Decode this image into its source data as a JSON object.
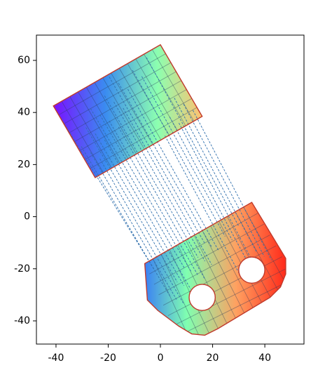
{
  "chart_data": {
    "type": "mesh-map",
    "xlim": [
      -47.5,
      55
    ],
    "ylim": [
      -48.9,
      69.7
    ],
    "xticks": [
      -40,
      -20,
      0,
      20,
      40
    ],
    "yticks": [
      -40,
      -20,
      0,
      20,
      40,
      60
    ],
    "edge_color": "#c0392b",
    "link_color": "#2f6fad",
    "shapes": [
      {
        "x": [
          -41,
          0,
          16,
          -25
        ],
        "y": [
          42.5,
          66,
          38.5,
          15
        ]
      },
      {
        "x": [
          -6,
          35,
          48,
          48,
          46,
          42,
          22,
          17,
          12,
          7,
          -1,
          -5
        ],
        "y": [
          -18,
          5.5,
          -16,
          -22,
          -27,
          -31,
          -43,
          -45.5,
          -45,
          -42,
          -36,
          -32
        ]
      }
    ],
    "holes": [
      {
        "x": 16,
        "y": -31,
        "r": 5
      },
      {
        "x": 35,
        "y": -20.5,
        "r": 5
      }
    ]
  }
}
